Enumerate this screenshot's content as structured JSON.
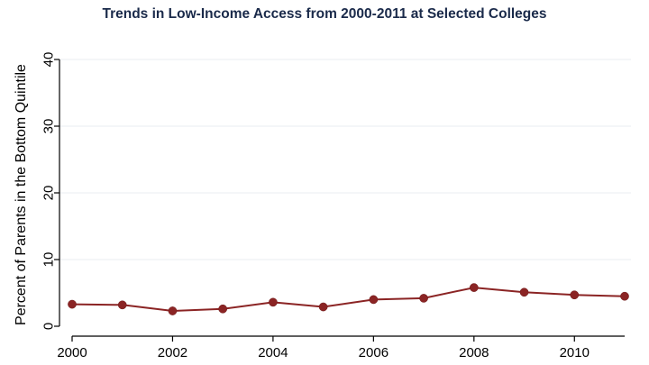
{
  "chart_data": {
    "type": "line",
    "title": "Trends in Low-Income Access from 2000-2011 at Selected Colleges",
    "xlabel": "",
    "ylabel": "Percent of Parents in the Bottom Quintile",
    "xlim": [
      2000,
      2011
    ],
    "ylim": [
      0,
      40
    ],
    "x_ticks": [
      "2000",
      "2002",
      "2004",
      "2006",
      "2008",
      "2010"
    ],
    "y_ticks": [
      "0",
      "10",
      "20",
      "30",
      "40"
    ],
    "grid": true,
    "legend": "none",
    "series": [
      {
        "color": "#8b2424",
        "x": [
          2000,
          2001,
          2002,
          2003,
          2004,
          2005,
          2006,
          2007,
          2008,
          2009,
          2010,
          2011
        ],
        "values": [
          3.3,
          3.2,
          2.3,
          2.6,
          3.6,
          2.9,
          4.0,
          4.2,
          5.8,
          5.1,
          4.7,
          4.5
        ]
      }
    ]
  }
}
